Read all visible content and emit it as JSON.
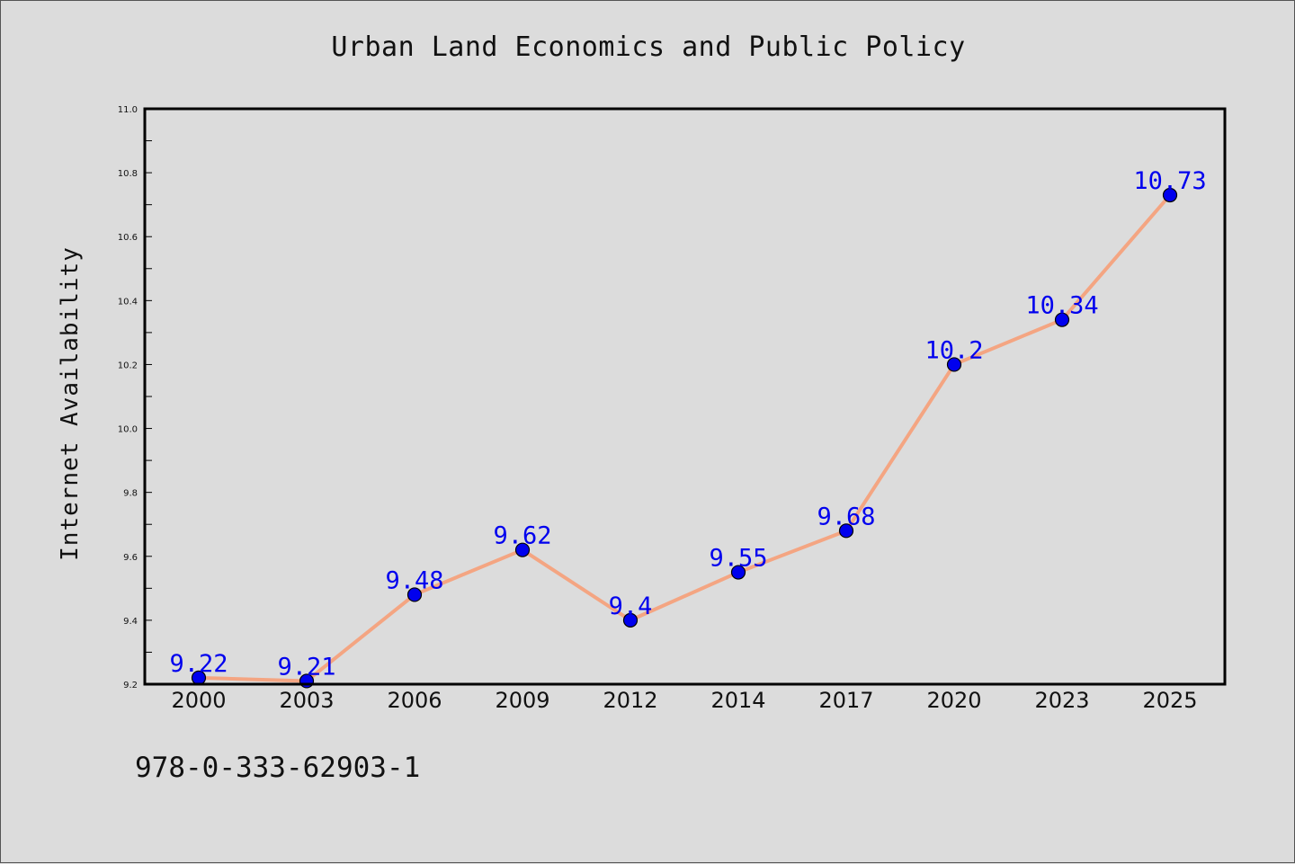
{
  "chart_data": {
    "type": "line",
    "title": "Urban Land Economics and Public Policy",
    "xlabel": "",
    "ylabel": "Internet Availability",
    "categories": [
      "2000",
      "2003",
      "2006",
      "2009",
      "2012",
      "2014",
      "2017",
      "2020",
      "2023",
      "2025"
    ],
    "series": [
      {
        "values": [
          9.22,
          9.21,
          9.48,
          9.62,
          9.4,
          9.55,
          9.68,
          10.2,
          10.34,
          10.73
        ],
        "labels": [
          "9.22",
          "9.21",
          "9.48",
          "9.62",
          "9.4",
          "9.55",
          "9.68",
          "10.2",
          "10.34",
          "10.73"
        ],
        "line_color": "#f4a582",
        "marker_color": "#0000ee"
      }
    ],
    "ylim": [
      9.2,
      11.0
    ],
    "yticks": [
      "9.2",
      "9.4",
      "9.6",
      "9.8",
      "10.0",
      "10.2",
      "10.4",
      "10.6",
      "10.8",
      "11.0"
    ],
    "grid": false,
    "data_label_color": "#0000ee"
  },
  "footer": {
    "isbn": "978-0-333-62903-1"
  }
}
